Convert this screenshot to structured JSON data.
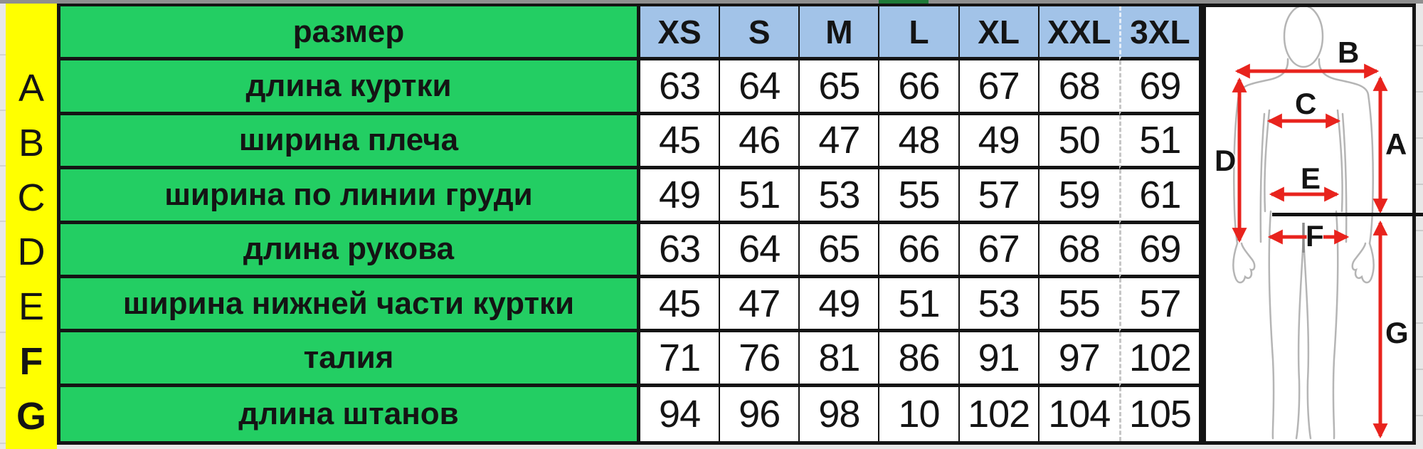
{
  "colors": {
    "green": "#23CE63",
    "dark-green": "#1F7A38",
    "yellow": "#FFFF00",
    "header-blue": "#A2C3E8",
    "red": "#E8231D",
    "line-black": "#121212",
    "body-gray": "#B5B5B5",
    "frame-gray": "#8F8F8F",
    "sliver-gray": "#E8E8E8"
  },
  "table": {
    "header": {
      "label": "размер",
      "sizes": [
        "XS",
        "S",
        "M",
        "L",
        "XL",
        "XXL",
        "3XL"
      ]
    },
    "rows": [
      {
        "letter": "A",
        "label": "длина куртки",
        "values": [
          "63",
          "64",
          "65",
          "66",
          "67",
          "68",
          "69"
        ]
      },
      {
        "letter": "B",
        "label": "ширина плеча",
        "values": [
          "45",
          "46",
          "47",
          "48",
          "49",
          "50",
          "51"
        ]
      },
      {
        "letter": "C",
        "label": "ширина по линии груди",
        "values": [
          "49",
          "51",
          "53",
          "55",
          "57",
          "59",
          "61"
        ]
      },
      {
        "letter": "D",
        "label": "длина рукова",
        "values": [
          "63",
          "64",
          "65",
          "66",
          "67",
          "68",
          "69"
        ]
      },
      {
        "letter": "E",
        "label": "ширина нижней части куртки",
        "values": [
          "45",
          "47",
          "49",
          "51",
          "53",
          "55",
          "57"
        ]
      },
      {
        "letter": "F",
        "label": "талия",
        "values": [
          "71",
          "76",
          "81",
          "86",
          "91",
          "97",
          "102"
        ]
      },
      {
        "letter": "G",
        "label": "длина штанов",
        "values": [
          "94",
          "96",
          "98",
          "10",
          "102",
          "104",
          "105"
        ]
      }
    ]
  },
  "figure": {
    "labels": {
      "A": "A",
      "B": "B",
      "C": "C",
      "D": "D",
      "E": "E",
      "F": "F",
      "G": "G"
    }
  },
  "chart_data": {
    "type": "table",
    "title": "размер",
    "columns": [
      "XS",
      "S",
      "M",
      "L",
      "XL",
      "XXL",
      "3XL"
    ],
    "row_keys": [
      "A",
      "B",
      "C",
      "D",
      "E",
      "F",
      "G"
    ],
    "row_labels": [
      "длина куртки",
      "ширина плеча",
      "ширина по линии груди",
      "длина рукова",
      "ширина нижней части куртки",
      "талия",
      "длина штанов"
    ],
    "values": [
      [
        63,
        64,
        65,
        66,
        67,
        68,
        69
      ],
      [
        45,
        46,
        47,
        48,
        49,
        50,
        51
      ],
      [
        49,
        51,
        53,
        55,
        57,
        59,
        61
      ],
      [
        63,
        64,
        65,
        66,
        67,
        68,
        69
      ],
      [
        45,
        47,
        49,
        51,
        53,
        55,
        57
      ],
      [
        71,
        76,
        81,
        86,
        91,
        97,
        102
      ],
      [
        94,
        96,
        98,
        10,
        102,
        104,
        105
      ]
    ]
  }
}
